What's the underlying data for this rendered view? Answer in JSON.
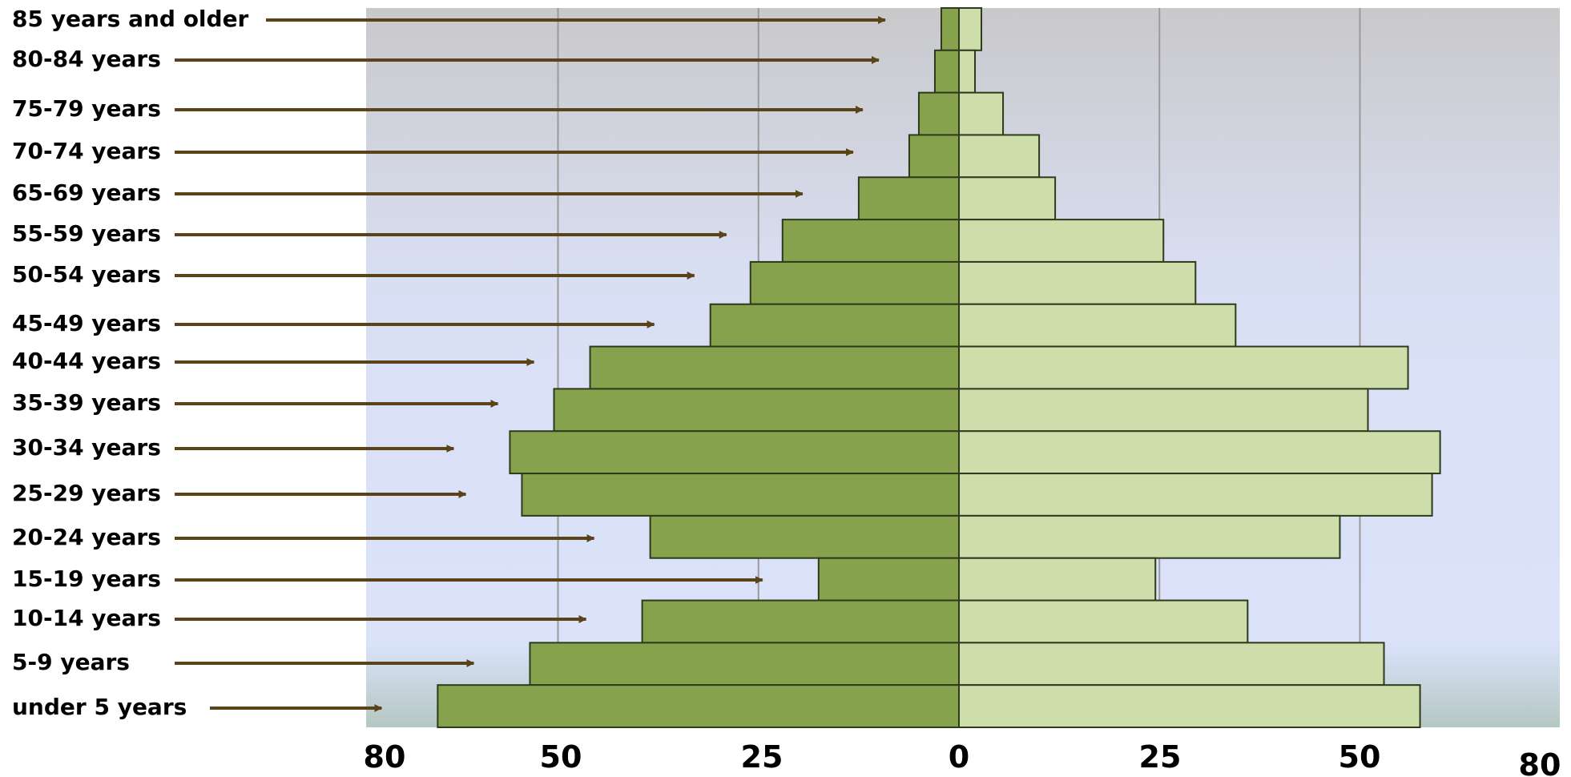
{
  "chart_data": {
    "type": "bar",
    "orientation": "horizontal",
    "variant": "population-pyramid",
    "categories": [
      "85 years and older",
      "80-84 years",
      "75-79 years",
      "70-74 years",
      "65-69 years",
      "55-59 years",
      "50-54 years",
      "45-49 years",
      "40-44 years",
      "35-39 years",
      "30-34 years",
      "25-29 years",
      "20-24 years",
      "15-19 years",
      "10-14 years",
      "5-9 years",
      "under 5 years"
    ],
    "series": [
      {
        "values": [
          2.2,
          3,
          5,
          6.2,
          12.5,
          22,
          26,
          31,
          46,
          50.5,
          56,
          54.5,
          38.5,
          17.5,
          39.5,
          53.5,
          65
        ]
      },
      {
        "values": [
          2.8,
          2,
          5.5,
          10,
          12,
          25.5,
          29.5,
          34.5,
          56,
          51,
          60,
          59,
          47.5,
          24.5,
          36,
          53,
          57.5
        ]
      }
    ],
    "x_ticks_left": [
      "80",
      "50",
      "25",
      "0"
    ],
    "x_ticks_right": [
      "25",
      "50",
      "80"
    ],
    "xlim": [
      -74.5,
      75
    ],
    "grid": "vertical",
    "colors": {
      "left_bar": "#87A24D",
      "right_bar": "#CEDEAA",
      "arrow": "#5A4318",
      "grid": "#9a9a9a",
      "bar_edge": "#2e3a1c"
    }
  }
}
